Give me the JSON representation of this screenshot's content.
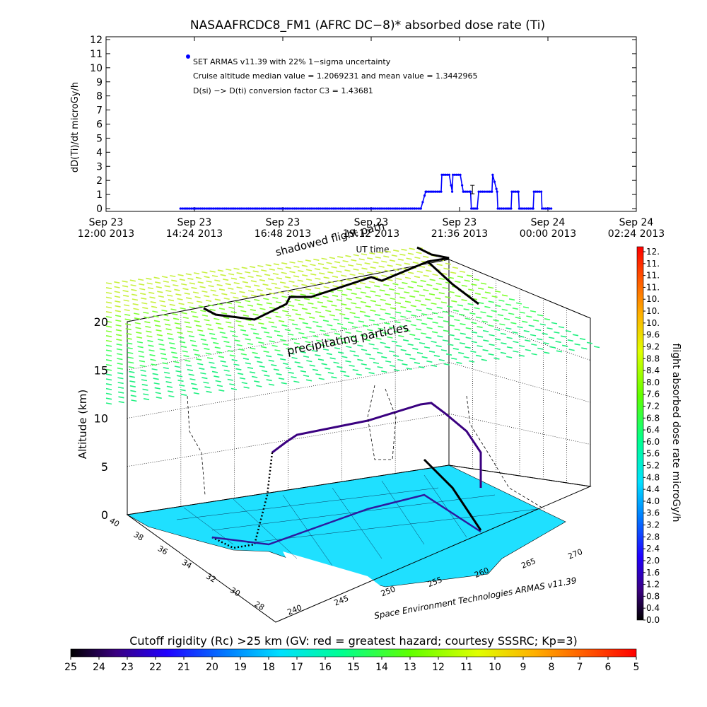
{
  "top_chart": {
    "title": "NASAAFRCDC8_FM1 (AFRC DC−8)* absorbed dose rate (Ti)",
    "ylabel": "dD(Ti)/dt microGy/h",
    "xlabel": "UT time",
    "annotations": [
      "SET ARMAS v11.39 with 22% 1−sigma uncertainty",
      "Cruise altitude median value = 1.2069231 and mean value = 1.3442965",
      "D(si) −> D(ti) conversion factor C3 = 1.43681"
    ],
    "x_tick_labels": [
      [
        "Sep 23",
        "12:00 2013"
      ],
      [
        "Sep 23",
        "14:24 2013"
      ],
      [
        "Sep 23",
        "16:48 2013"
      ],
      [
        "Sep 23",
        "19:12 2013"
      ],
      [
        "Sep 23",
        "21:36 2013"
      ],
      [
        "Sep 24",
        "00:00 2013"
      ],
      [
        "Sep 24",
        "02:24 2013"
      ]
    ],
    "overlay_labels": [
      "shadowed flight path"
    ]
  },
  "chart_data": [
    {
      "type": "line",
      "title": "NASAAFRCDC8_FM1 (AFRC DC−8)* absorbed dose rate (Ti)",
      "xlabel": "UT time",
      "ylabel": "dD(Ti)/dt microGy/h",
      "x_unit": "hours since Sep 23 12:00 2013 UT",
      "xlim": [
        0,
        14.4
      ],
      "ylim": [
        0,
        12
      ],
      "y_ticks": [
        0,
        1,
        2,
        3,
        4,
        5,
        6,
        7,
        8,
        9,
        10,
        11,
        12
      ],
      "grid": false,
      "series": [
        {
          "name": "SET ARMAS v11.39",
          "color": "#0000ff",
          "x": [
            2.02,
            8.38,
            8.55,
            8.68,
            8.7,
            8.9,
            9.1,
            9.12,
            9.32,
            9.4,
            9.42,
            9.62,
            9.7,
            9.72,
            9.9,
            9.92,
            10.08,
            10.12,
            10.48,
            10.5,
            10.62,
            10.64,
            11.0,
            11.02,
            11.2,
            11.22,
            11.6,
            11.62,
            11.82,
            11.84,
            12.1
          ],
          "y": [
            0,
            0,
            0,
            1.2,
            1.2,
            1.2,
            1.2,
            2.4,
            2.4,
            1.2,
            2.4,
            2.4,
            1.2,
            1.2,
            1.2,
            0,
            0,
            1.2,
            1.2,
            2.4,
            1.2,
            0,
            0,
            1.2,
            1.2,
            0,
            0,
            1.2,
            1.2,
            0,
            0
          ]
        }
      ],
      "error_bar": {
        "x": 9.95,
        "y": 1.35,
        "low": 1.05,
        "high": 1.65
      }
    },
    {
      "type": "scatter",
      "subtype": "3d-flight-track",
      "zlabel": "Altitude (km)",
      "z_ticks": [
        0,
        5,
        10,
        15,
        20
      ],
      "lat_ticks": [
        40,
        38,
        36,
        34,
        32,
        30,
        28
      ],
      "lon_ticks": [
        240,
        245,
        250,
        255,
        260,
        265,
        270
      ],
      "labels": [
        "precipitating particles"
      ],
      "credit": "Space Environment Technologies ARMAS v11.39"
    }
  ],
  "dose_colorbar": {
    "label": "flight absorbed dose rate microGy/h",
    "ticks": [
      "12.",
      "11.",
      "11.",
      "11.",
      "10.",
      "10.",
      "10.",
      "9.6",
      "9.2",
      "8.8",
      "8.4",
      "8.0",
      "7.6",
      "7.2",
      "6.8",
      "6.4",
      "6.0",
      "5.6",
      "5.2",
      "4.8",
      "4.4",
      "4.0",
      "3.6",
      "3.2",
      "2.8",
      "2.4",
      "2.0",
      "1.6",
      "1.2",
      "0.8",
      "0.4",
      "0.0"
    ]
  },
  "rigidity_colorbar": {
    "label": "Cutoff rigidity (Rc) >25 km (GV: red = greatest hazard; courtesy SSSRC; Kp=3)",
    "ticks": [
      "25",
      "24",
      "23",
      "22",
      "21",
      "20",
      "19",
      "18",
      "17",
      "16",
      "15",
      "14",
      "13",
      "12",
      "11",
      "10",
      "9",
      "8",
      "7",
      "6",
      "5"
    ]
  },
  "colors": {
    "dose_series": "#0000ff",
    "flight_track": "#000000",
    "land": "#1fe0ff",
    "colormap": [
      "#000000",
      "#3a0080",
      "#2000ff",
      "#0080ff",
      "#00e0ff",
      "#00ff90",
      "#60ff00",
      "#e0ff00",
      "#ffb000",
      "#ff5000",
      "#ff0000"
    ]
  }
}
